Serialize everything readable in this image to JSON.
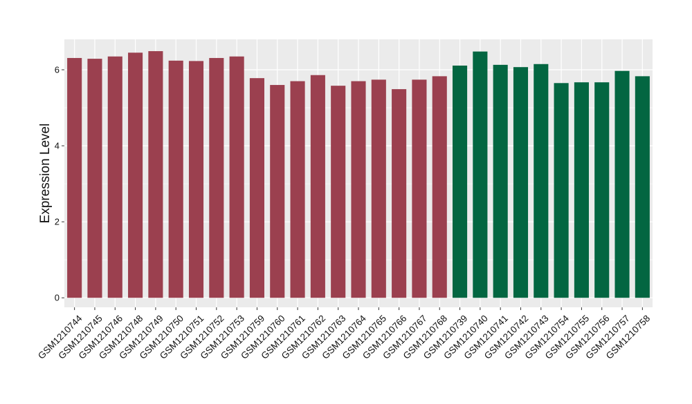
{
  "chart_data": {
    "type": "bar",
    "title": "",
    "xlabel": "",
    "ylabel": "Expression Level",
    "ylim": [
      0,
      6.8
    ],
    "yticks": [
      0,
      2,
      4,
      6
    ],
    "grid": true,
    "legend": "none",
    "categories": [
      "GSM1210744",
      "GSM1210745",
      "GSM1210746",
      "GSM1210748",
      "GSM1210749",
      "GSM1210750",
      "GSM1210751",
      "GSM1210752",
      "GSM1210753",
      "GSM1210759",
      "GSM1210760",
      "GSM1210761",
      "GSM1210762",
      "GSM1210763",
      "GSM1210764",
      "GSM1210765",
      "GSM1210766",
      "GSM1210767",
      "GSM1210768",
      "GSM1210739",
      "GSM1210740",
      "GSM1210741",
      "GSM1210742",
      "GSM1210743",
      "GSM1210754",
      "GSM1210755",
      "GSM1210756",
      "GSM1210757",
      "GSM1210758"
    ],
    "values": [
      6.31,
      6.29,
      6.35,
      6.45,
      6.49,
      6.24,
      6.23,
      6.31,
      6.35,
      5.78,
      5.6,
      5.7,
      5.86,
      5.58,
      5.7,
      5.74,
      5.49,
      5.74,
      5.83,
      6.11,
      6.48,
      6.13,
      6.07,
      6.15,
      5.65,
      5.67,
      5.67,
      5.97,
      5.83
    ],
    "groups": [
      "a",
      "a",
      "a",
      "a",
      "a",
      "a",
      "a",
      "a",
      "a",
      "a",
      "a",
      "a",
      "a",
      "a",
      "a",
      "a",
      "a",
      "a",
      "a",
      "b",
      "b",
      "b",
      "b",
      "b",
      "b",
      "b",
      "b",
      "b",
      "b"
    ],
    "group_colors": {
      "a": "#9b404f",
      "b": "#036641"
    },
    "panel_background": "#ebebeb",
    "grid_color": "#ffffff"
  }
}
